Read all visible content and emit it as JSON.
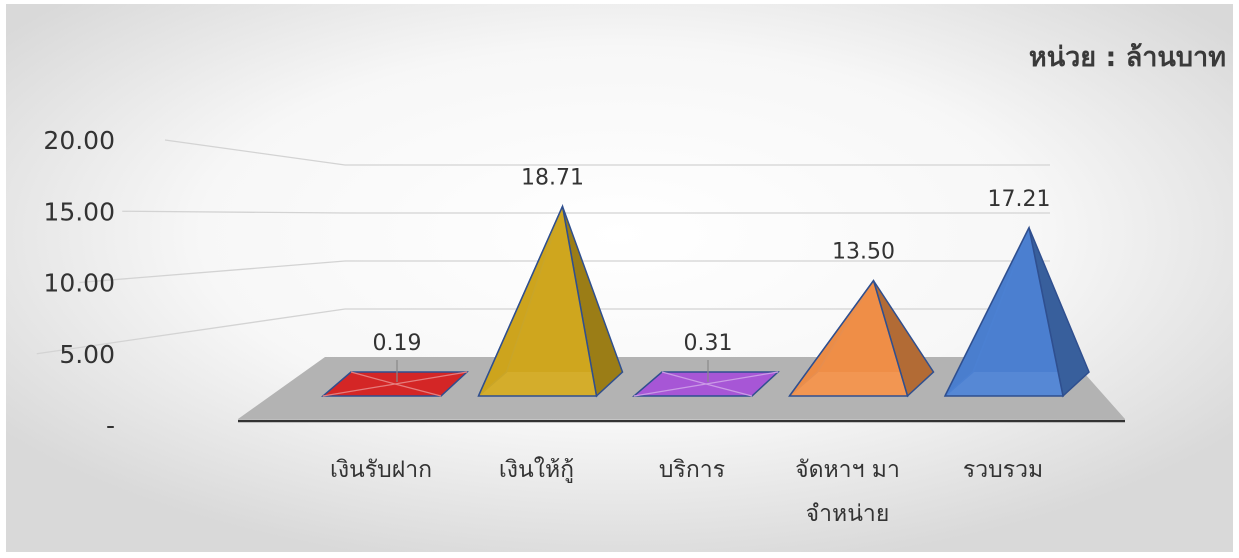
{
  "chart_data": {
    "type": "bar",
    "subtype": "3d-pyramid",
    "unit_label": "หน่วย : ล้านบาท",
    "categories": [
      "เงินรับฝาก",
      "เงินให้กู้",
      "บริการ",
      "จัดหาฯ มา จำหน่าย",
      "รวบรวม"
    ],
    "category_lines": [
      [
        "เงินรับฝาก"
      ],
      [
        "เงินให้กู้"
      ],
      [
        "บริการ"
      ],
      [
        "จัดหาฯ มา",
        "จำหน่าย"
      ],
      [
        "รวบรวม"
      ]
    ],
    "values": [
      0.19,
      18.71,
      0.31,
      13.5,
      17.21
    ],
    "data_labels": [
      "0.19",
      "18.71",
      "0.31",
      "13.50",
      "17.21"
    ],
    "colors": [
      "#d42626",
      "#d7ad1f",
      "#a756d6",
      "#f7944a",
      "#4e84d8"
    ],
    "y_ticks": [
      0,
      5,
      10,
      15,
      20
    ],
    "y_tick_labels": [
      "-",
      "5.00",
      "10.00",
      "15.00",
      "20.00"
    ],
    "ylim": [
      0,
      20
    ],
    "grid": true,
    "legend": "none"
  }
}
